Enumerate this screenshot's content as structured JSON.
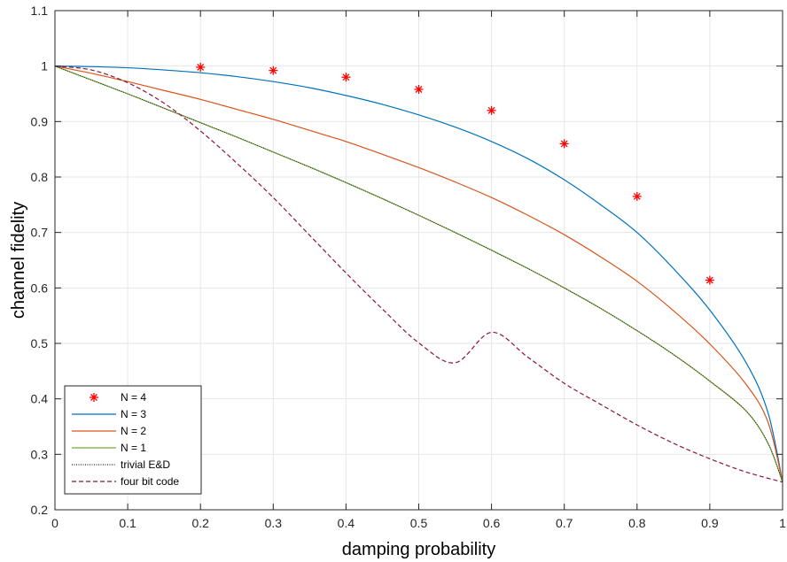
{
  "chart_data": {
    "type": "line",
    "xlabel": "damping probability",
    "ylabel": "channel fidelity",
    "xlim": [
      0,
      1
    ],
    "ylim": [
      0.2,
      1.1
    ],
    "xticks": [
      "0",
      "0.1",
      "0.2",
      "0.3",
      "0.4",
      "0.5",
      "0.6",
      "0.7",
      "0.8",
      "0.9",
      "1"
    ],
    "yticks": [
      "0.2",
      "0.3",
      "0.4",
      "0.5",
      "0.6",
      "0.7",
      "0.8",
      "0.9",
      "1",
      "1.1"
    ],
    "grid": true,
    "legend_position": "bottom-left",
    "series": [
      {
        "name": "N = 4",
        "style": "markers",
        "marker": "asterisk",
        "color": "#ff0000",
        "x": [
          0.2,
          0.3,
          0.4,
          0.5,
          0.6,
          0.7,
          0.8,
          0.9
        ],
        "y": [
          0.998,
          0.992,
          0.98,
          0.958,
          0.92,
          0.86,
          0.765,
          0.614
        ]
      },
      {
        "name": "N = 3",
        "style": "solid",
        "color": "#0072bd",
        "x": [
          0,
          0.05,
          0.1,
          0.15,
          0.2,
          0.25,
          0.3,
          0.35,
          0.4,
          0.45,
          0.5,
          0.55,
          0.6,
          0.65,
          0.7,
          0.75,
          0.8,
          0.85,
          0.9,
          0.95,
          0.98,
          1
        ],
        "y": [
          1.0,
          0.999,
          0.997,
          0.993,
          0.988,
          0.981,
          0.972,
          0.961,
          0.947,
          0.931,
          0.912,
          0.89,
          0.864,
          0.833,
          0.795,
          0.75,
          0.7,
          0.635,
          0.56,
          0.465,
          0.375,
          0.25
        ]
      },
      {
        "name": "N = 2",
        "style": "solid",
        "color": "#d95319",
        "x": [
          0,
          0.05,
          0.1,
          0.15,
          0.2,
          0.25,
          0.3,
          0.35,
          0.4,
          0.45,
          0.5,
          0.55,
          0.6,
          0.65,
          0.7,
          0.75,
          0.8,
          0.85,
          0.9,
          0.95,
          0.98,
          1
        ],
        "y": [
          1.0,
          0.987,
          0.972,
          0.956,
          0.94,
          0.922,
          0.904,
          0.884,
          0.864,
          0.841,
          0.817,
          0.791,
          0.763,
          0.731,
          0.696,
          0.656,
          0.612,
          0.559,
          0.499,
          0.426,
          0.358,
          0.25
        ]
      },
      {
        "name": "N = 1",
        "style": "solid",
        "color": "#77ac30",
        "x": [
          0,
          0.05,
          0.1,
          0.15,
          0.2,
          0.25,
          0.3,
          0.35,
          0.4,
          0.45,
          0.5,
          0.55,
          0.6,
          0.65,
          0.7,
          0.75,
          0.8,
          0.85,
          0.9,
          0.95,
          0.98,
          1
        ],
        "y": [
          1.0,
          0.975,
          0.95,
          0.924,
          0.898,
          0.872,
          0.845,
          0.818,
          0.79,
          0.761,
          0.731,
          0.7,
          0.668,
          0.635,
          0.6,
          0.563,
          0.523,
          0.48,
          0.432,
          0.378,
          0.32,
          0.25
        ]
      },
      {
        "name": "trivial E&D",
        "style": "dotted",
        "color": "#222222",
        "x": [
          0,
          0.05,
          0.1,
          0.15,
          0.2,
          0.25,
          0.3,
          0.35,
          0.4,
          0.45,
          0.5,
          0.55,
          0.6,
          0.65,
          0.7,
          0.75,
          0.8,
          0.85,
          0.9,
          0.95,
          0.98,
          1
        ],
        "y": [
          1.0,
          0.975,
          0.95,
          0.924,
          0.898,
          0.872,
          0.845,
          0.818,
          0.79,
          0.761,
          0.731,
          0.7,
          0.668,
          0.635,
          0.6,
          0.563,
          0.523,
          0.48,
          0.432,
          0.378,
          0.32,
          0.25
        ]
      },
      {
        "name": "four bit code",
        "style": "dashed",
        "color": "#8b1538",
        "x": [
          0,
          0.05,
          0.1,
          0.15,
          0.2,
          0.25,
          0.3,
          0.35,
          0.4,
          0.45,
          0.5,
          0.55,
          0.6,
          0.65,
          0.7,
          0.75,
          0.8,
          0.85,
          0.9,
          0.95,
          1
        ],
        "y": [
          1.0,
          0.993,
          0.97,
          0.933,
          0.883,
          0.825,
          0.763,
          0.695,
          0.627,
          0.562,
          0.501,
          0.465,
          0.52,
          0.475,
          0.428,
          0.39,
          0.353,
          0.32,
          0.292,
          0.268,
          0.25
        ]
      }
    ]
  }
}
